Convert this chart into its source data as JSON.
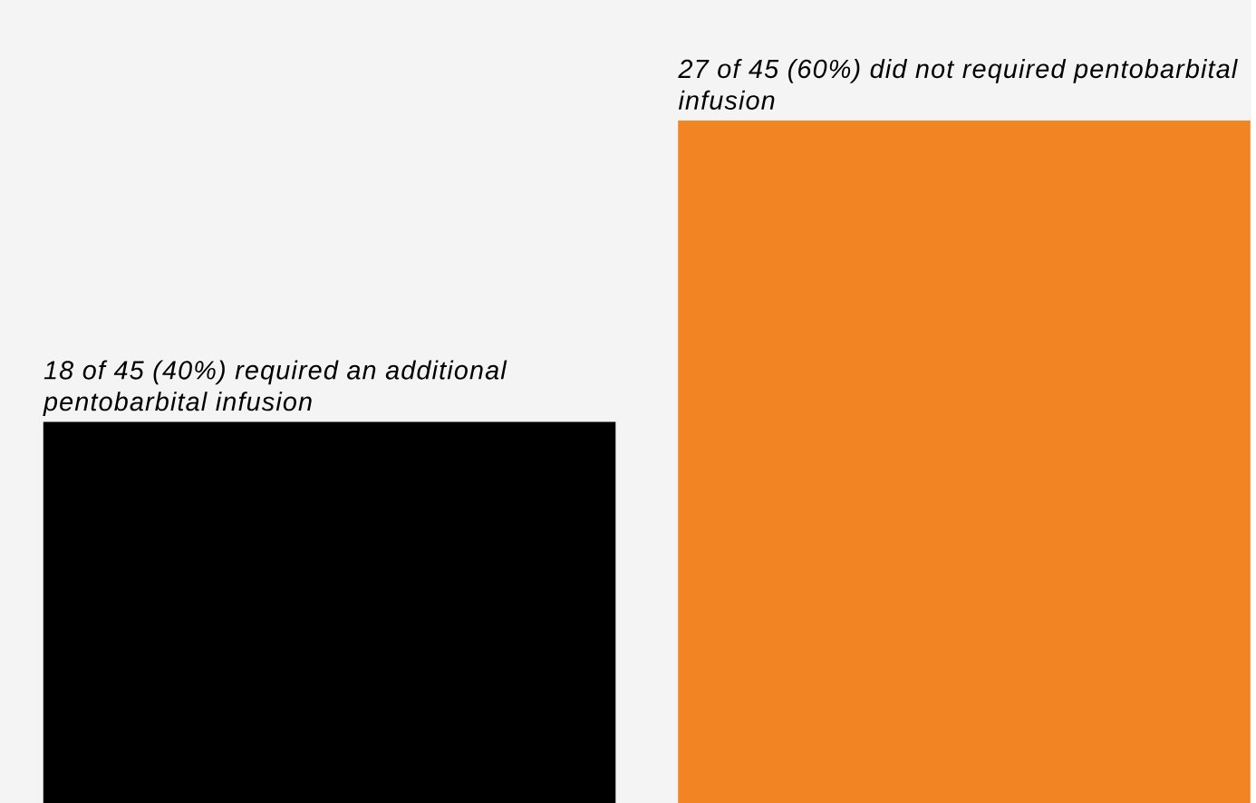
{
  "chart_data": {
    "type": "bar",
    "categories": [
      null,
      null
    ],
    "values": [
      18,
      27
    ],
    "colors": [
      "#000000",
      "#f28424"
    ],
    "value_labels": [
      "18 of 45 (40%) required an additional pentobarbital infusion",
      "27 of 45 (60%) did not required pentobarbital infusion"
    ],
    "ylim": [
      6.6,
      30.6
    ],
    "tick_labels": false
  }
}
